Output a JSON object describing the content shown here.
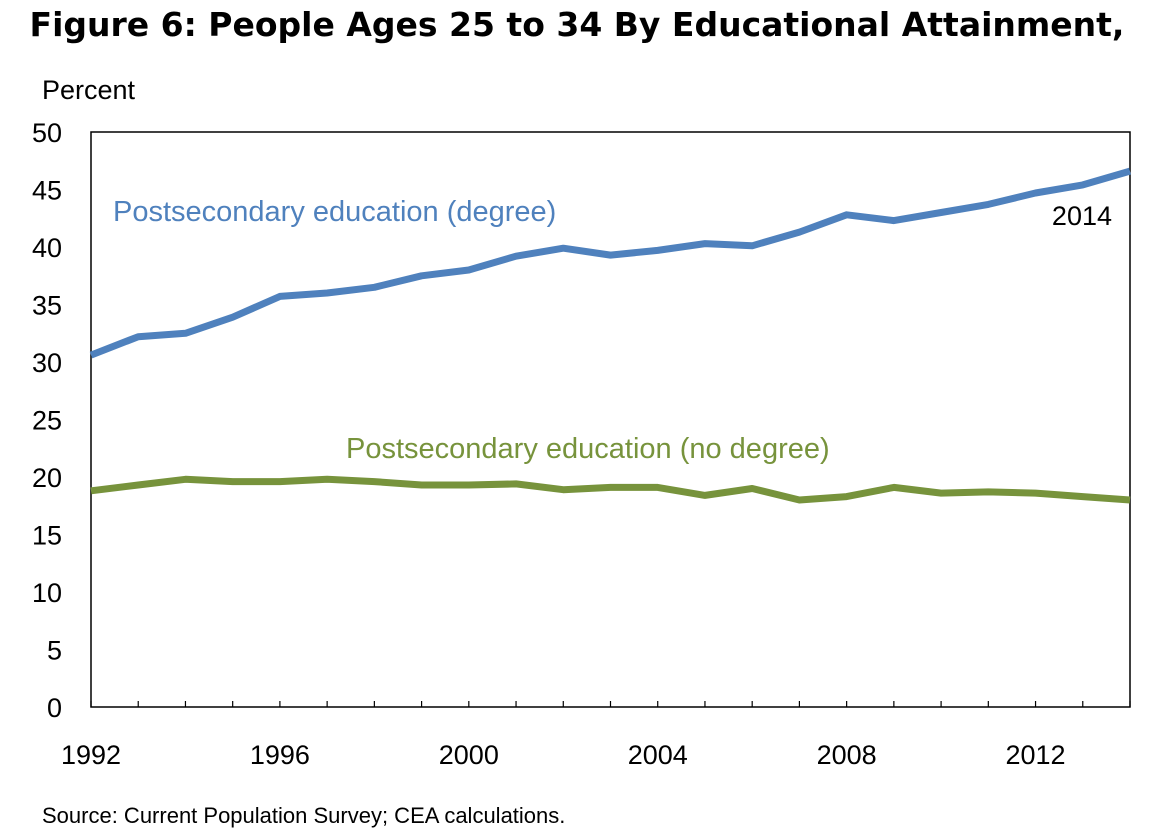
{
  "chart_data": {
    "type": "line",
    "title": "Figure 6: People Ages 25 to 34 By Educational Attainment,",
    "ylabel": "Percent",
    "xlabel": "",
    "xlim": [
      1992,
      2014
    ],
    "ylim": [
      0,
      50
    ],
    "x_ticks": [
      1992,
      1996,
      2000,
      2004,
      2008,
      2012
    ],
    "y_ticks": [
      0,
      5,
      10,
      15,
      20,
      25,
      30,
      35,
      40,
      45,
      50
    ],
    "grid": false,
    "legend": "none",
    "x": [
      1992,
      1993,
      1994,
      1995,
      1996,
      1997,
      1998,
      1999,
      2000,
      2001,
      2002,
      2003,
      2004,
      2005,
      2006,
      2007,
      2008,
      2009,
      2010,
      2011,
      2012,
      2013,
      2014
    ],
    "series": [
      {
        "name": "Postsecondary education (degree)",
        "color": "#4F81BD",
        "values": [
          30.6,
          32.2,
          32.5,
          33.9,
          35.7,
          36.0,
          36.5,
          37.5,
          38.0,
          39.2,
          39.9,
          39.3,
          39.7,
          40.3,
          40.1,
          41.3,
          42.8,
          42.3,
          43.0,
          43.7,
          44.7,
          45.4,
          46.6
        ]
      },
      {
        "name": "Postsecondary education (no degree)",
        "color": "#77933C",
        "values": [
          18.8,
          19.3,
          19.8,
          19.6,
          19.6,
          19.8,
          19.6,
          19.3,
          19.3,
          19.4,
          18.9,
          19.1,
          19.1,
          18.4,
          19.0,
          18.0,
          18.3,
          19.1,
          18.6,
          18.7,
          18.6,
          18.3,
          18.0
        ]
      }
    ],
    "annotations": [
      {
        "text": "2014",
        "x": 2014,
        "y": 46.6
      }
    ],
    "source": "Source: Current Population Survey; CEA calculations."
  }
}
